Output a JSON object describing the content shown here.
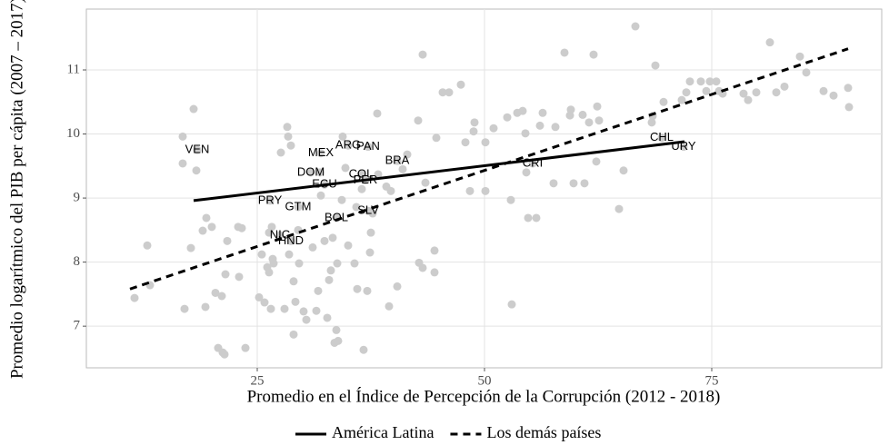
{
  "chart_data": {
    "type": "scatter",
    "xlabel": "Promedio en el Índice de Percepción de la Corrupción (2012 - 2018)",
    "ylabel": "Promedio logarítmico del PIB per cápita (2007 – 2017)",
    "xlim": [
      6.2,
      93.7
    ],
    "ylim": [
      6.35,
      11.95
    ],
    "xticks": [
      25,
      50,
      75
    ],
    "yticks": [
      7,
      8,
      9,
      10,
      11
    ],
    "grid": true,
    "points": {
      "color": "#cccccc",
      "x": [
        11.5,
        12.9,
        13.2,
        16.8,
        16.8,
        18.0,
        18.3,
        17.0,
        17.7,
        19.0,
        19.4,
        19.3,
        20.0,
        20.4,
        20.7,
        21.2,
        21.1,
        21.4,
        21.7,
        21.5,
        22.9,
        23.3,
        23.0,
        23.7,
        25.2,
        25.5,
        25.8,
        26.1,
        26.3,
        26.3,
        26.5,
        26.7,
        26.8,
        26.6,
        27.6,
        28.0,
        28.3,
        28.4,
        28.7,
        28.5,
        29.0,
        29.0,
        29.2,
        29.5,
        29.6,
        30.1,
        30.4,
        31.1,
        31.5,
        31.7,
        31.9,
        32.0,
        32.4,
        32.7,
        32.9,
        33.1,
        33.3,
        33.5,
        33.7,
        33.8,
        33.9,
        34.3,
        34.4,
        34.7,
        35.0,
        35.7,
        35.9,
        36.0,
        36.5,
        36.7,
        37.1,
        37.4,
        37.5,
        37.7,
        38.2,
        38.3,
        39.2,
        39.5,
        39.7,
        40.4,
        41.0,
        41.5,
        42.7,
        42.8,
        43.2,
        43.2,
        43.5,
        44.5,
        44.5,
        44.7,
        45.4,
        46.1,
        47.4,
        47.9,
        48.4,
        48.8,
        48.9,
        50.1,
        50.1,
        51.0,
        52.5,
        52.9,
        53.0,
        53.6,
        54.2,
        54.5,
        54.6,
        54.8,
        55.7,
        56.1,
        56.4,
        57.6,
        57.8,
        58.8,
        59.4,
        59.5,
        59.8,
        60.8,
        61.0,
        61.5,
        62.0,
        62.3,
        62.4,
        62.6,
        64.8,
        65.3,
        66.6,
        68.4,
        68.5,
        68.8,
        69.7,
        71.7,
        72.2,
        72.6,
        73.8,
        74.4,
        74.8,
        75.5,
        75.8,
        76.2,
        78.5,
        79.0,
        79.9,
        81.4,
        82.1,
        83.0,
        84.7,
        85.4,
        87.3,
        88.4,
        90.0,
        90.1
      ],
      "y": [
        7.44,
        8.26,
        7.64,
        9.96,
        9.54,
        10.39,
        9.43,
        7.27,
        8.22,
        8.49,
        8.69,
        7.3,
        8.55,
        7.52,
        6.66,
        6.59,
        7.47,
        6.56,
        8.33,
        7.81,
        8.55,
        8.53,
        7.77,
        6.66,
        7.45,
        8.12,
        7.37,
        7.92,
        8.46,
        7.84,
        7.27,
        8.05,
        7.98,
        8.55,
        9.71,
        7.27,
        10.11,
        9.96,
        9.82,
        8.12,
        7.7,
        6.87,
        7.38,
        8.5,
        7.98,
        7.23,
        7.1,
        8.23,
        7.24,
        7.55,
        9.4,
        9.04,
        8.33,
        7.13,
        7.72,
        7.87,
        8.38,
        6.74,
        6.94,
        7.98,
        6.77,
        8.97,
        9.96,
        9.47,
        8.26,
        7.98,
        8.86,
        7.58,
        9.14,
        6.63,
        7.55,
        8.15,
        8.46,
        8.76,
        10.32,
        9.37,
        9.18,
        7.31,
        9.11,
        7.62,
        9.45,
        9.68,
        10.21,
        7.99,
        11.24,
        7.91,
        9.24,
        7.84,
        8.18,
        9.94,
        10.65,
        10.65,
        10.77,
        9.87,
        9.11,
        10.04,
        10.18,
        9.87,
        9.11,
        10.09,
        10.26,
        8.97,
        7.34,
        10.33,
        10.36,
        10.01,
        9.4,
        8.69,
        8.69,
        10.13,
        10.33,
        9.23,
        10.11,
        11.27,
        10.29,
        10.38,
        9.23,
        10.3,
        9.23,
        10.18,
        11.24,
        9.57,
        10.43,
        10.21,
        8.83,
        9.43,
        11.68,
        10.18,
        10.28,
        11.07,
        10.5,
        10.53,
        10.65,
        10.82,
        10.82,
        10.67,
        10.82,
        10.82,
        10.67,
        10.63,
        10.63,
        10.53,
        10.65,
        11.43,
        10.65,
        10.74,
        11.21,
        10.96,
        10.67,
        10.6,
        10.72,
        10.42
      ]
    },
    "countries": [
      {
        "label": "VEN",
        "x": 18.4,
        "y": 9.75
      },
      {
        "label": "ARG",
        "x": 35.0,
        "y": 9.82
      },
      {
        "label": "PAN",
        "x": 37.2,
        "y": 9.8
      },
      {
        "label": "MEX",
        "x": 32.0,
        "y": 9.7
      },
      {
        "label": "BRA",
        "x": 40.4,
        "y": 9.58
      },
      {
        "label": "DOM",
        "x": 30.9,
        "y": 9.4
      },
      {
        "label": "COL",
        "x": 36.4,
        "y": 9.37
      },
      {
        "label": "PER",
        "x": 36.9,
        "y": 9.28
      },
      {
        "label": "ECU",
        "x": 32.4,
        "y": 9.21
      },
      {
        "label": "CHL",
        "x": 69.5,
        "y": 9.94
      },
      {
        "label": "URY",
        "x": 71.9,
        "y": 9.8
      },
      {
        "label": "CRI",
        "x": 55.3,
        "y": 9.54
      },
      {
        "label": "PRY",
        "x": 26.4,
        "y": 8.96
      },
      {
        "label": "GTM",
        "x": 29.5,
        "y": 8.86
      },
      {
        "label": "SLV",
        "x": 37.2,
        "y": 8.8
      },
      {
        "label": "BOL",
        "x": 33.7,
        "y": 8.69
      },
      {
        "label": "NIC",
        "x": 27.5,
        "y": 8.42
      },
      {
        "label": "HND",
        "x": 28.7,
        "y": 8.33
      }
    ],
    "series": [
      {
        "name": "América Latina",
        "color": "#000000",
        "dashed": false,
        "x": [
          18,
          72
        ],
        "values": [
          8.96,
          9.88
        ]
      },
      {
        "name": "Los demás países",
        "color": "#000000",
        "dashed": true,
        "x": [
          11,
          90
        ],
        "values": [
          7.58,
          11.33
        ]
      }
    ]
  }
}
